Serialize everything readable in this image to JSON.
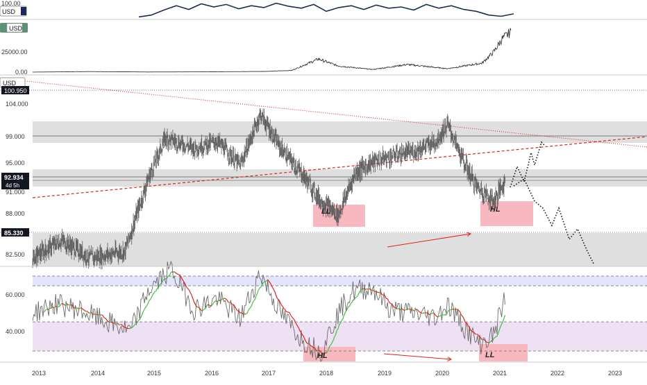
{
  "x_axis": {
    "labels": [
      "2013",
      "2014",
      "2015",
      "2016",
      "2017",
      "2018",
      "2019",
      "2020",
      "2021",
      "2022",
      "2023"
    ]
  },
  "colors": {
    "price": "#5a5a5a",
    "top_line": "#1b2c52",
    "btc_line": "#333333",
    "rsi_line": "#6a6a6a",
    "rsi_ma_up": "#3fbf3f",
    "rsi_ma_down": "#e0201a",
    "trendline": "#e0201a",
    "zone_gray": "#dcdcdc",
    "zone_blue": "#e4e4fb",
    "zone_purple": "#efe1f4",
    "box_red": "#f7b8bf",
    "usd_green": "#5f8f75",
    "label_dark": "#131722"
  },
  "panes": {
    "top": {
      "usd_label": "USD",
      "scale_labels": [
        "100.00"
      ]
    },
    "btc": {
      "usd_label": "USD",
      "scale_labels": [
        "25000.00",
        "0.00"
      ]
    },
    "main": {
      "usd_label": "USD",
      "scale_labels": [
        "104.000",
        "99.000",
        "95.000",
        "91.000",
        "88.000",
        "82.500"
      ],
      "top_label": "100.950",
      "price_tag": "92.934",
      "price_tag_sub": "4d 5h",
      "level_tag": "85.330",
      "annotations": [
        {
          "id": "ll-main",
          "text": "LL"
        },
        {
          "id": "hl-main",
          "text": "HL"
        }
      ]
    },
    "rsi": {
      "scale_labels": [
        "60.000",
        "40.000"
      ],
      "annotations": [
        {
          "id": "hl-rsi",
          "text": "HL"
        },
        {
          "id": "ll-rsi",
          "text": "LL"
        }
      ]
    }
  },
  "chart_data": [
    {
      "type": "line",
      "pane": "top",
      "series": [
        {
          "values": [
            94,
            97,
            105,
            112,
            106,
            115,
            110,
            114,
            107,
            112,
            109,
            116,
            111,
            108,
            114,
            103,
            109,
            112,
            106,
            113,
            108,
            110,
            105,
            114,
            108,
            112,
            106,
            103,
            97,
            95,
            99
          ]
        }
      ]
    },
    {
      "type": "line",
      "pane": "btc",
      "x": [
        2013.0,
        2014.0,
        2015.0,
        2016.0,
        2017.0,
        2017.5,
        2017.96,
        2018.3,
        2018.9,
        2019.5,
        2020.2,
        2020.8,
        2021.0,
        2021.15,
        2021.3
      ],
      "series": [
        {
          "values": [
            100,
            800,
            250,
            430,
            1000,
            2500,
            19000,
            9000,
            3800,
            11000,
            5000,
            13000,
            29000,
            48000,
            58000
          ]
        }
      ],
      "ylim": [
        0,
        60000
      ]
    },
    {
      "type": "line",
      "pane": "main",
      "x": [
        2013.0,
        2013.5,
        2014.0,
        2014.6,
        2015.0,
        2015.3,
        2015.8,
        2016.2,
        2016.6,
        2016.95,
        2017.3,
        2017.7,
        2018.0,
        2018.3,
        2018.6,
        2018.9,
        2019.3,
        2019.6,
        2020.0,
        2020.2,
        2020.45,
        2020.7,
        2021.0,
        2021.2
      ],
      "series": [
        {
          "values": [
            82,
            84.5,
            82,
            83,
            93,
            99,
            97.5,
            98.5,
            95,
            102.5,
            97.5,
            93.5,
            90,
            88,
            94,
            95.5,
            96.5,
            97,
            98.5,
            101,
            96,
            92,
            90,
            92.9
          ]
        }
      ],
      "ylim": [
        80,
        106
      ]
    },
    {
      "type": "line",
      "pane": "rsi",
      "x": [
        2013.0,
        2013.4,
        2013.8,
        2014.3,
        2014.7,
        2015.0,
        2015.4,
        2015.8,
        2016.2,
        2016.6,
        2016.95,
        2017.3,
        2017.7,
        2018.0,
        2018.3,
        2018.55,
        2018.9,
        2019.2,
        2019.6,
        2020.0,
        2020.2,
        2020.5,
        2020.75,
        2021.0,
        2021.2
      ],
      "series": [
        {
          "values": [
            50,
            55,
            52,
            45,
            40,
            62,
            74,
            52,
            58,
            47,
            72,
            50,
            35,
            29,
            50,
            62,
            64,
            52,
            50,
            48,
            55,
            42,
            33,
            38,
            59
          ]
        }
      ],
      "ylim": [
        28,
        72
      ]
    }
  ]
}
